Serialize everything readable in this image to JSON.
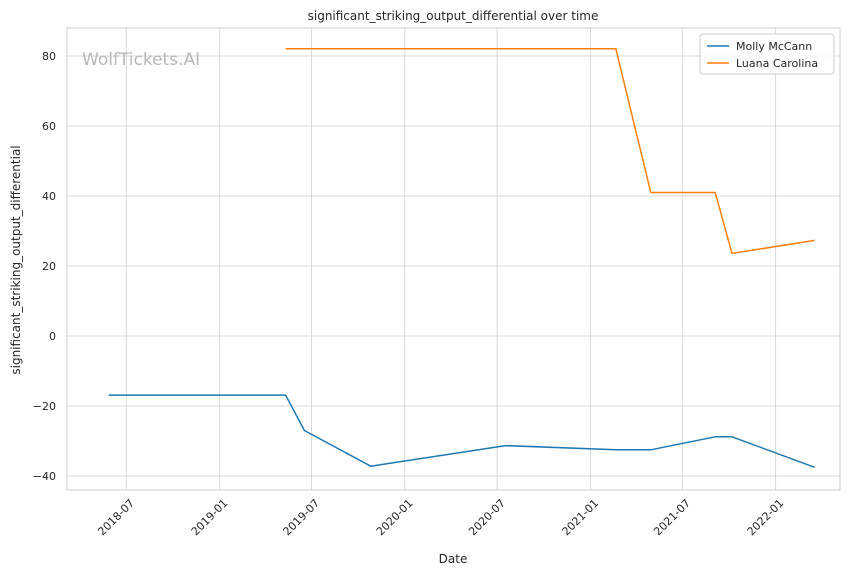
{
  "watermark": "WolfTickets.AI",
  "chart_data": {
    "type": "line",
    "title": "significant_striking_output_differential over time",
    "xlabel": "Date",
    "ylabel": "significant_striking_output_differential",
    "xlim": [
      "2018-03-06",
      "2022-05-08"
    ],
    "ylim": [
      -44,
      88
    ],
    "x_ticks": [
      "2018-07-01",
      "2019-01-01",
      "2019-07-01",
      "2020-01-01",
      "2020-07-01",
      "2021-01-01",
      "2021-07-01",
      "2022-01-01"
    ],
    "x_tick_labels": [
      "2018-07",
      "2019-01",
      "2019-07",
      "2020-01",
      "2020-07",
      "2021-01",
      "2021-07",
      "2022-01"
    ],
    "y_ticks": [
      -40,
      -20,
      0,
      20,
      40,
      60,
      80
    ],
    "y_tick_labels": [
      "−40",
      "−20",
      "0",
      "20",
      "40",
      "60",
      "80"
    ],
    "grid": true,
    "legend_position": "top-right",
    "series": [
      {
        "name": "Molly McCann",
        "color": "#1f77b4",
        "points": [
          {
            "x": "2018-05-27",
            "y": -16.9
          },
          {
            "x": "2019-05-11",
            "y": -16.9
          },
          {
            "x": "2019-06-17",
            "y": -27
          },
          {
            "x": "2019-10-26",
            "y": -37.2
          },
          {
            "x": "2020-07-18",
            "y": -31.3
          },
          {
            "x": "2021-02-20",
            "y": -32.5
          },
          {
            "x": "2021-04-30",
            "y": -32.5
          },
          {
            "x": "2021-09-04",
            "y": -28.8
          },
          {
            "x": "2021-10-07",
            "y": -28.8
          },
          {
            "x": "2022-03-19",
            "y": -37.5
          }
        ]
      },
      {
        "name": "Luana Carolina",
        "color": "#ff7f0e",
        "points": [
          {
            "x": "2019-05-11",
            "y": 82.1
          },
          {
            "x": "2021-02-20",
            "y": 82.1
          },
          {
            "x": "2021-04-30",
            "y": 41
          },
          {
            "x": "2021-09-04",
            "y": 41
          },
          {
            "x": "2021-10-07",
            "y": 23.6
          },
          {
            "x": "2022-03-19",
            "y": 27.3
          }
        ]
      }
    ]
  }
}
